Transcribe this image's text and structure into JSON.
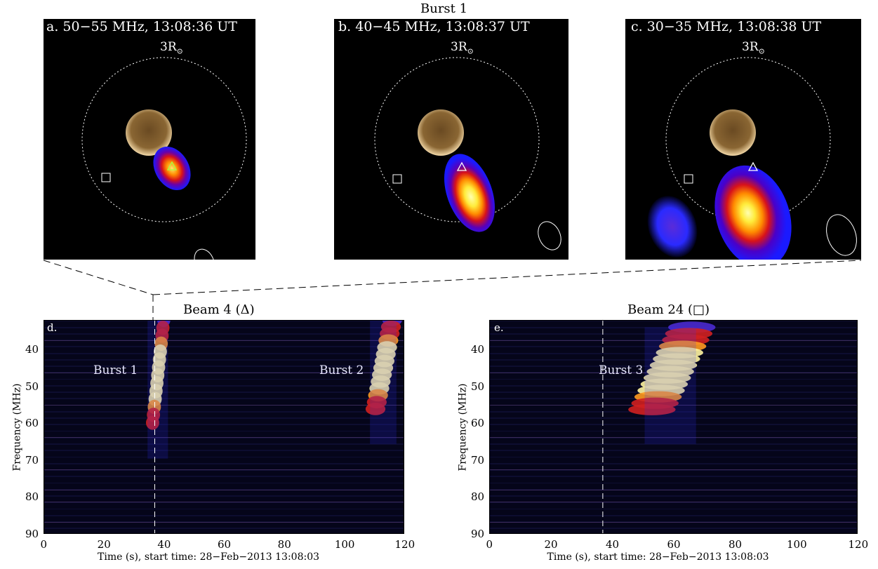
{
  "figure_title": "Burst 1",
  "panels": [
    {
      "label": "a. 50−55 MHz, 13:08:36 UT",
      "rsun": "3R",
      "sun_symbol": "⊙"
    },
    {
      "label": "b. 40−45 MHz, 13:08:37 UT",
      "rsun": "3R",
      "sun_symbol": "⊙"
    },
    {
      "label": "c. 30−35 MHz, 13:08:38 UT",
      "rsun": "3R",
      "sun_symbol": "⊙"
    }
  ],
  "spectra": [
    {
      "letter": "d.",
      "title": "Beam 4 (Δ)",
      "bursts": [
        "Burst 1",
        "Burst 2"
      ]
    },
    {
      "letter": "e.",
      "title": "Beam 24 (□)",
      "bursts": [
        "Burst 3"
      ]
    }
  ],
  "colors": {
    "background": "#000000",
    "spectrum_bg": "#05051a",
    "accent_hot": "#ffff66"
  },
  "chart_data": [
    {
      "type": "heatmap",
      "title": "Beam 4 (Δ)",
      "xlabel": "Time (s), start time: 28−Feb−2013 13:08:03",
      "ylabel": "Frequency (MHz)",
      "xlim": [
        0,
        120
      ],
      "ylim": [
        90,
        32
      ],
      "xticks": [
        "0",
        "20",
        "40",
        "60",
        "80",
        "100",
        "120"
      ],
      "yticks": [
        "40",
        "50",
        "60",
        "70",
        "80",
        "90"
      ],
      "marker_time": 37,
      "bursts": [
        {
          "name": "Burst 1",
          "t_start": 36,
          "t_end": 40,
          "f_high": 32,
          "f_low": 62,
          "peak": 1.0
        },
        {
          "name": "Burst 2",
          "t_start": 110,
          "t_end": 116,
          "f_high": 32,
          "f_low": 58,
          "peak": 0.9
        }
      ],
      "annotations": [
        "Burst 1",
        "Burst 2"
      ]
    },
    {
      "type": "heatmap",
      "title": "Beam 24 (□)",
      "xlabel": "Time (s), start time: 28−Feb−2013 13:08:03",
      "ylabel": "Frequency (MHz)",
      "xlim": [
        0,
        120
      ],
      "ylim": [
        90,
        32
      ],
      "xticks": [
        "0",
        "20",
        "40",
        "60",
        "80",
        "100",
        "120"
      ],
      "yticks": [
        "40",
        "50",
        "60",
        "70",
        "80",
        "90"
      ],
      "marker_time": 37,
      "bursts": [
        {
          "name": "Burst 3",
          "t_start": 52,
          "t_end": 66,
          "f_high": 34,
          "f_low": 58,
          "peak": 1.0
        }
      ],
      "annotations": [
        "Burst 3"
      ]
    }
  ]
}
